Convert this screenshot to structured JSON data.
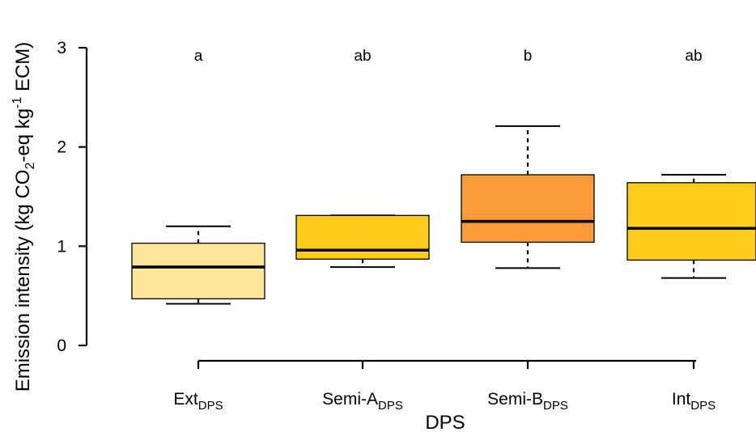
{
  "chart_data": {
    "type": "boxplot",
    "xlabel": "DPS",
    "ylabel": {
      "part1": "Emission intensity (kg CO",
      "sub": "2",
      "part2": "-eq kg",
      "sup": "-1",
      "part3": " ECM)"
    },
    "ylim": [
      0,
      3
    ],
    "yticks": [
      0,
      1,
      2,
      3
    ],
    "grid": false,
    "legend": "none",
    "categories": [
      {
        "base": "Ext",
        "subscript": "DPS",
        "letter": "a",
        "color": "#FDE59A",
        "whisker_low": 0.42,
        "q1": 0.47,
        "median": 0.79,
        "q3": 1.03,
        "whisker_high": 1.2
      },
      {
        "base": "Semi-A",
        "subscript": "DPS",
        "letter": "ab",
        "color": "#FECB1A",
        "whisker_low": 0.79,
        "q1": 0.87,
        "median": 0.96,
        "q3": 1.31,
        "whisker_high": 1.31
      },
      {
        "base": "Semi-B",
        "subscript": "DPS",
        "letter": "b",
        "color": "#FB9B37",
        "whisker_low": 0.78,
        "q1": 1.04,
        "median": 1.25,
        "q3": 1.72,
        "whisker_high": 2.21
      },
      {
        "base": "Int",
        "subscript": "DPS",
        "letter": "ab",
        "color": "#FECB1A",
        "whisker_low": 0.68,
        "q1": 0.86,
        "median": 1.18,
        "q3": 1.64,
        "whisker_high": 1.72
      }
    ]
  }
}
